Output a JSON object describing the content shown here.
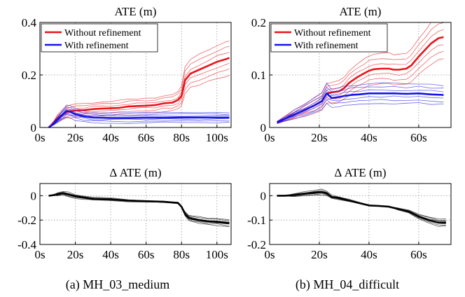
{
  "chart_data": [
    {
      "type": "line",
      "title": "ATE (m)",
      "xlim": [
        0,
        108
      ],
      "ylim": [
        0,
        0.4
      ],
      "x_ticks": [
        0,
        20,
        40,
        60,
        80,
        100
      ],
      "x_tick_labels": [
        "0s",
        "20s",
        "40s",
        "60s",
        "80s",
        "100s"
      ],
      "y_ticks": [
        0,
        0.2,
        0.4
      ],
      "y_tick_labels": [
        "0",
        "0.2",
        "0.4"
      ],
      "grid": true,
      "legend_position": "top-left",
      "series": [
        {
          "name": "Without refinement",
          "color": "#e8141b",
          "x": [
            5,
            8,
            10,
            13,
            15,
            17,
            20,
            25,
            30,
            35,
            40,
            45,
            50,
            55,
            60,
            65,
            70,
            75,
            78,
            80,
            82,
            85,
            90,
            95,
            100,
            105,
            107
          ],
          "y": [
            0.0,
            0.02,
            0.035,
            0.05,
            0.058,
            0.062,
            0.064,
            0.066,
            0.07,
            0.072,
            0.073,
            0.075,
            0.08,
            0.082,
            0.083,
            0.085,
            0.092,
            0.095,
            0.105,
            0.12,
            0.18,
            0.205,
            0.22,
            0.235,
            0.25,
            0.26,
            0.265
          ]
        },
        {
          "name": "With refinement",
          "color": "#1414e8",
          "x": [
            5,
            8,
            10,
            13,
            15,
            17,
            20,
            25,
            30,
            35,
            40,
            50,
            60,
            70,
            80,
            90,
            100,
            107
          ],
          "y": [
            0.0,
            0.015,
            0.03,
            0.05,
            0.063,
            0.06,
            0.05,
            0.042,
            0.038,
            0.037,
            0.036,
            0.036,
            0.037,
            0.037,
            0.038,
            0.038,
            0.038,
            0.038
          ]
        }
      ]
    },
    {
      "type": "line",
      "title": "ATE (m)",
      "xlim": [
        0,
        73
      ],
      "ylim": [
        0,
        0.2
      ],
      "x_ticks": [
        0,
        20,
        40,
        60
      ],
      "x_tick_labels": [
        "0s",
        "20s",
        "40s",
        "60s"
      ],
      "y_ticks": [
        0,
        0.1,
        0.2
      ],
      "y_tick_labels": [
        "0",
        "0.1",
        "0.2"
      ],
      "grid": true,
      "legend_position": "top-left",
      "series": [
        {
          "name": "Without refinement",
          "color": "#e8141b",
          "x": [
            3,
            6,
            10,
            14,
            18,
            21,
            23,
            25,
            28,
            30,
            32,
            35,
            38,
            40,
            42,
            45,
            48,
            50,
            52,
            55,
            57,
            60,
            63,
            65,
            68,
            70
          ],
          "y": [
            0.01,
            0.016,
            0.025,
            0.033,
            0.042,
            0.05,
            0.065,
            0.067,
            0.069,
            0.075,
            0.085,
            0.095,
            0.103,
            0.108,
            0.111,
            0.112,
            0.112,
            0.11,
            0.11,
            0.112,
            0.118,
            0.135,
            0.15,
            0.16,
            0.17,
            0.172
          ]
        },
        {
          "name": "With refinement",
          "color": "#1414e8",
          "x": [
            3,
            6,
            10,
            14,
            18,
            21,
            23,
            25,
            28,
            30,
            33,
            36,
            40,
            45,
            50,
            55,
            60,
            65,
            70
          ],
          "y": [
            0.01,
            0.016,
            0.025,
            0.033,
            0.042,
            0.05,
            0.065,
            0.056,
            0.058,
            0.06,
            0.062,
            0.063,
            0.065,
            0.065,
            0.065,
            0.064,
            0.065,
            0.063,
            0.062
          ]
        }
      ]
    },
    {
      "type": "line",
      "title": "Δ ATE (m)",
      "xlim": [
        0,
        108
      ],
      "ylim": [
        -0.4,
        0.1
      ],
      "x_ticks": [
        0,
        20,
        40,
        60,
        80,
        100
      ],
      "x_tick_labels": [
        "0s",
        "20s",
        "40s",
        "60s",
        "80s",
        "100s"
      ],
      "y_ticks": [
        -0.4,
        -0.2,
        0
      ],
      "y_tick_labels": [
        "-0.4",
        "-0.2",
        "0"
      ],
      "grid": true,
      "series": [
        {
          "color": "#000000",
          "x": [
            5,
            8,
            10,
            13,
            16,
            20,
            25,
            30,
            40,
            50,
            60,
            70,
            78,
            80,
            82,
            84,
            86,
            90,
            95,
            100,
            107
          ],
          "y": [
            0.0,
            0.005,
            0.012,
            0.02,
            0.01,
            -0.005,
            -0.015,
            -0.025,
            -0.03,
            -0.04,
            -0.045,
            -0.05,
            -0.06,
            -0.09,
            -0.15,
            -0.18,
            -0.19,
            -0.2,
            -0.21,
            -0.215,
            -0.225
          ]
        }
      ]
    },
    {
      "type": "line",
      "title": "Δ ATE (m)",
      "xlim": [
        0,
        73
      ],
      "ylim": [
        -0.2,
        0.05
      ],
      "x_ticks": [
        0,
        20,
        40,
        60
      ],
      "x_tick_labels": [
        "0s",
        "20s",
        "40s",
        "60s"
      ],
      "y_ticks": [
        -0.2,
        -0.1,
        0
      ],
      "y_tick_labels": [
        "-0.2",
        "-0.1",
        "0"
      ],
      "grid": true,
      "series": [
        {
          "color": "#000000",
          "x": [
            3,
            6,
            10,
            14,
            18,
            21,
            23,
            25,
            28,
            32,
            36,
            40,
            44,
            48,
            52,
            56,
            60,
            64,
            68,
            71
          ],
          "y": [
            0.0,
            0.0,
            0.003,
            0.008,
            0.012,
            0.015,
            0.01,
            -0.005,
            -0.01,
            -0.02,
            -0.03,
            -0.04,
            -0.042,
            -0.045,
            -0.055,
            -0.065,
            -0.085,
            -0.1,
            -0.11,
            -0.11
          ]
        }
      ]
    }
  ],
  "captions": {
    "a": "(a) MH_03_medium",
    "b": "(b) MH_04_difficult"
  }
}
